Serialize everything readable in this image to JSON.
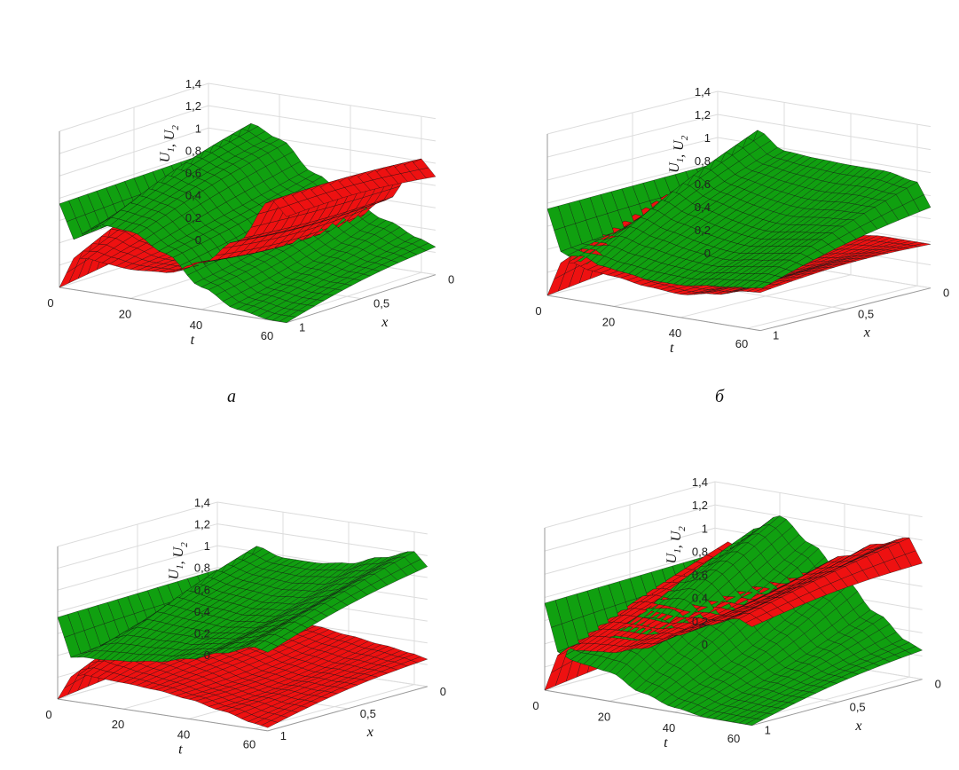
{
  "colors": {
    "u1": "#ee1111",
    "u2": "#10a010",
    "mesh": "#111111",
    "grid": "#dcdcdc"
  },
  "panel_labels": [
    "а",
    "б",
    "",
    ""
  ],
  "axis_text": {
    "t": "t",
    "x": "x",
    "u_main": "U",
    "u_sub1": "1",
    "u_sep": ",",
    "u_sub2": "2"
  },
  "chart_data": [
    {
      "type": "surface",
      "panel": "а",
      "x_label": "x",
      "t_label": "t",
      "z_label": "U1, U2",
      "t_ticks": [
        0,
        20,
        40,
        60
      ],
      "t_tick_labels": [
        "0",
        "20",
        "40",
        "60"
      ],
      "x_ticks": [
        0,
        0.5,
        1
      ],
      "x_tick_labels": [
        "0",
        "0,5",
        "1"
      ],
      "z_ticks": [
        0,
        0.2,
        0.4,
        0.6,
        0.8,
        1,
        1.2,
        1.4
      ],
      "z_tick_labels": [
        "0",
        "0,2",
        "0,4",
        "0,6",
        "0,8",
        "1",
        "1,2",
        "1,4"
      ],
      "t_range": [
        0,
        64
      ],
      "x_range": [
        0,
        1
      ],
      "z_range": [
        0,
        1.4
      ],
      "series": [
        {
          "color": "red",
          "t": [
            0,
            4,
            8,
            12,
            20,
            30,
            40,
            50,
            60,
            64
          ],
          "values_x0": [
            0.2,
            0.85,
            0.72,
            0.5,
            0.28,
            0.26,
            0.36,
            0.6,
            1.02,
            0.88
          ],
          "values_x1": [
            0.0,
            0.28,
            0.3,
            0.28,
            0.26,
            0.28,
            0.42,
            0.66,
            1.08,
            0.95
          ]
        },
        {
          "color": "green",
          "t": [
            0,
            4,
            8,
            12,
            20,
            30,
            40,
            50,
            60,
            64
          ],
          "values_x0": [
            0.78,
            0.5,
            0.78,
            1.1,
            1.0,
            0.74,
            0.56,
            0.42,
            0.3,
            0.25
          ],
          "values_x1": [
            0.75,
            0.45,
            0.55,
            0.62,
            0.6,
            0.45,
            0.2,
            0.05,
            0.0,
            0.0
          ]
        }
      ]
    },
    {
      "type": "surface",
      "panel": "б",
      "x_label": "x",
      "t_label": "t",
      "z_label": "U1, U2",
      "t_ticks": [
        0,
        20,
        40,
        60
      ],
      "t_tick_labels": [
        "0",
        "20",
        "40",
        "60"
      ],
      "x_ticks": [
        0,
        0.5,
        1
      ],
      "x_tick_labels": [
        "0",
        "0,5",
        "1"
      ],
      "z_ticks": [
        0,
        0.2,
        0.4,
        0.6,
        0.8,
        1,
        1.2,
        1.4
      ],
      "z_tick_labels": [
        "0",
        "0,2",
        "0,4",
        "0,6",
        "0,8",
        "1",
        "1,2",
        "1,4"
      ],
      "t_range": [
        0,
        64
      ],
      "x_range": [
        0,
        1
      ],
      "z_range": [
        0,
        1.4
      ],
      "series": [
        {
          "color": "red",
          "t": [
            0,
            4,
            8,
            12,
            20,
            30,
            40,
            50,
            60,
            64
          ],
          "values_x0": [
            0.2,
            0.85,
            0.75,
            0.42,
            0.3,
            0.32,
            0.35,
            0.38,
            0.38,
            0.38
          ],
          "values_x1": [
            0.0,
            0.3,
            0.32,
            0.28,
            0.26,
            0.22,
            0.2,
            0.25,
            0.32,
            0.33
          ]
        },
        {
          "color": "green",
          "t": [
            0,
            4,
            8,
            12,
            20,
            30,
            40,
            50,
            60,
            64
          ],
          "values_x0": [
            0.78,
            0.5,
            0.8,
            1.12,
            0.98,
            0.96,
            0.95,
            0.95,
            0.9,
            0.7
          ],
          "values_x1": [
            0.75,
            0.4,
            0.35,
            0.33,
            0.3,
            0.28,
            0.28,
            0.32,
            0.35,
            0.36
          ]
        }
      ]
    },
    {
      "type": "surface",
      "panel": "",
      "x_label": "x",
      "t_label": "t",
      "z_label": "U1, U2",
      "t_ticks": [
        0,
        20,
        40,
        60
      ],
      "t_tick_labels": [
        "0",
        "20",
        "40",
        "60"
      ],
      "x_ticks": [
        0,
        0.5,
        1
      ],
      "x_tick_labels": [
        "0",
        "0,5",
        "1"
      ],
      "z_ticks": [
        0,
        0.2,
        0.4,
        0.6,
        0.8,
        1,
        1.2,
        1.4
      ],
      "z_tick_labels": [
        "0",
        "0,2",
        "0,4",
        "0,6",
        "0,8",
        "1",
        "1,2",
        "1,4"
      ],
      "t_range": [
        0,
        64
      ],
      "x_range": [
        0,
        1
      ],
      "z_range": [
        0,
        1.4
      ],
      "series": [
        {
          "color": "red",
          "t": [
            0,
            4,
            8,
            12,
            20,
            30,
            40,
            50,
            60,
            64
          ],
          "values_x0": [
            0.2,
            0.82,
            0.75,
            0.6,
            0.42,
            0.4,
            0.36,
            0.32,
            0.28,
            0.25
          ],
          "values_x1": [
            0.0,
            0.22,
            0.26,
            0.25,
            0.24,
            0.22,
            0.18,
            0.12,
            0.05,
            0.03
          ]
        },
        {
          "color": "green",
          "t": [
            0,
            4,
            8,
            12,
            20,
            30,
            40,
            50,
            60,
            64
          ],
          "values_x0": [
            0.78,
            0.5,
            0.82,
            1.05,
            0.98,
            0.98,
            1.02,
            1.12,
            1.22,
            1.1
          ],
          "values_x1": [
            0.75,
            0.4,
            0.42,
            0.42,
            0.44,
            0.48,
            0.55,
            0.65,
            0.75,
            0.72
          ]
        }
      ]
    },
    {
      "type": "surface",
      "panel": "",
      "x_label": "x",
      "t_label": "t",
      "z_label": "U1, U2",
      "t_ticks": [
        0,
        20,
        40,
        60
      ],
      "t_tick_labels": [
        "0",
        "20",
        "40",
        "60"
      ],
      "x_ticks": [
        0,
        0.5,
        1
      ],
      "x_tick_labels": [
        "0",
        "0,5",
        "1"
      ],
      "z_ticks": [
        0,
        0.2,
        0.4,
        0.6,
        0.8,
        1,
        1.2,
        1.4
      ],
      "z_tick_labels": [
        "0",
        "0,2",
        "0,4",
        "0,6",
        "0,8",
        "1",
        "1,2",
        "1,4"
      ],
      "t_range": [
        0,
        64
      ],
      "x_range": [
        0,
        1
      ],
      "z_range": [
        0,
        1.4
      ],
      "series": [
        {
          "color": "red",
          "t": [
            0,
            4,
            8,
            12,
            20,
            30,
            40,
            50,
            60,
            64
          ],
          "values_x0": [
            0.2,
            0.9,
            0.86,
            0.8,
            0.76,
            0.8,
            0.95,
            1.1,
            1.2,
            1.0
          ],
          "values_x1": [
            0.0,
            0.32,
            0.38,
            0.4,
            0.42,
            0.5,
            0.66,
            0.8,
            0.9,
            0.85
          ]
        },
        {
          "color": "green",
          "t": [
            0,
            4,
            8,
            12,
            20,
            30,
            40,
            50,
            60,
            64
          ],
          "values_x0": [
            0.78,
            0.48,
            0.75,
            1.05,
            1.2,
            1.0,
            0.75,
            0.5,
            0.3,
            0.25
          ],
          "values_x1": [
            0.75,
            0.35,
            0.3,
            0.28,
            0.25,
            0.12,
            0.04,
            0.0,
            0.0,
            0.0
          ]
        }
      ]
    }
  ]
}
